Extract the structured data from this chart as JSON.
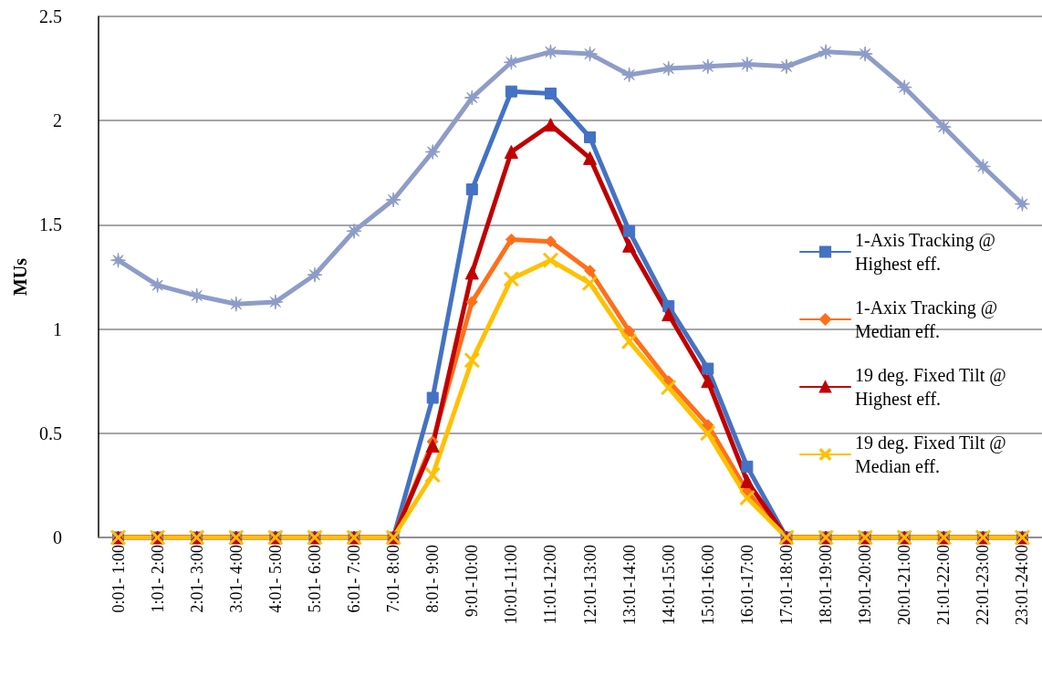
{
  "chart_data": {
    "type": "line",
    "ylabel": "MUs",
    "categories": [
      "0:01- 1:00",
      "1:01- 2:00",
      "2:01- 3:00",
      "3:01- 4:00",
      "4:01- 5:00",
      "5:01- 6:00",
      "6:01- 7:00",
      "7:01- 8:00",
      "8:01- 9:00",
      "9:01-10:00",
      "10:01-11:00",
      "11:01-12:00",
      "12:01-13:00",
      "13:01-14:00",
      "14:01-15:00",
      "15:01-16:00",
      "16:01-17:00",
      "17:01-18:00",
      "18:01-19:00",
      "19:01-20:00",
      "20:01-21:00",
      "21:01-22:00",
      "22:01-23:00",
      "23:01-24:00"
    ],
    "series": [
      {
        "color": "#8e9cc8",
        "marker": "star",
        "values": [
          1.33,
          1.21,
          1.16,
          1.12,
          1.13,
          1.26,
          1.47,
          1.62,
          1.85,
          2.11,
          2.28,
          2.33,
          2.32,
          2.22,
          2.25,
          2.26,
          2.27,
          2.26,
          2.33,
          2.32,
          2.16,
          1.97,
          1.78,
          1.6
        ]
      },
      {
        "name": "1-Axis Tracking @ Highest eff.",
        "color": "#4472c4",
        "marker": "square",
        "values": [
          0,
          0,
          0,
          0,
          0,
          0,
          0,
          0,
          0.67,
          1.67,
          2.14,
          2.13,
          1.92,
          1.47,
          1.11,
          0.81,
          0.34,
          0,
          0,
          0,
          0,
          0,
          0,
          0
        ]
      },
      {
        "name": "1-Axix Tracking @ Median eff.",
        "color": "#ff6f1a",
        "marker": "diamond",
        "values": [
          0,
          0,
          0,
          0,
          0,
          0,
          0,
          0,
          0.46,
          1.13,
          1.43,
          1.42,
          1.28,
          0.99,
          0.75,
          0.54,
          0.22,
          0,
          0,
          0,
          0,
          0,
          0,
          0
        ]
      },
      {
        "name": "19 deg. Fixed Tilt @ Highest eff.",
        "color": "#c00000",
        "marker": "triangle",
        "values": [
          0,
          0,
          0,
          0,
          0,
          0,
          0,
          0,
          0.44,
          1.27,
          1.85,
          1.98,
          1.82,
          1.4,
          1.07,
          0.75,
          0.27,
          0,
          0,
          0,
          0,
          0,
          0,
          0
        ]
      },
      {
        "name": "19 deg. Fixed Tilt @ Median eff.",
        "color": "#ffc000",
        "marker": "cross",
        "values": [
          0,
          0,
          0,
          0,
          0,
          0,
          0,
          0,
          0.3,
          0.85,
          1.24,
          1.33,
          1.22,
          0.94,
          0.72,
          0.5,
          0.19,
          0,
          0,
          0,
          0,
          0,
          0,
          0
        ]
      }
    ],
    "ylim": [
      0,
      2.5
    ],
    "yticks": [
      0,
      0.5,
      1,
      1.5,
      2,
      2.5
    ],
    "grid": "y",
    "legend": "right",
    "line_style": "solid"
  }
}
